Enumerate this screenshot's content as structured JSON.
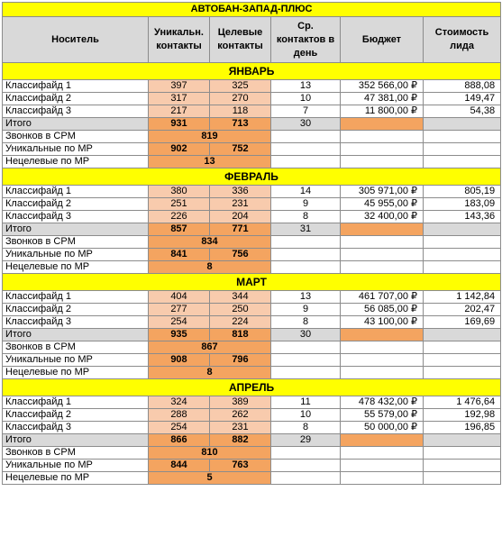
{
  "title": "АВТОБАН-ЗАПАД-ПЛЮС",
  "headers": {
    "carrier": "Носитель",
    "unique": "Уникальн. контакты",
    "target": "Целевые контакты",
    "avg": "Ср. контактов в день",
    "budget": "Бюджет",
    "lead_cost": "Стоимость лида"
  },
  "labels": {
    "total": "Итого",
    "calls_cpm": "Звонков в CPM",
    "unique_mp": "Уникальные по МР",
    "nontarget_mp": "Нецелевые по МР"
  },
  "months": [
    {
      "name": "ЯНВАРЬ",
      "rows": [
        {
          "name": "Классифайд 1",
          "unique": "397",
          "target": "325",
          "avg": "13",
          "budget": "352 566,00 ₽",
          "lead": "888,08"
        },
        {
          "name": "Классифайд 2",
          "unique": "317",
          "target": "270",
          "avg": "10",
          "budget": "47 381,00 ₽",
          "lead": "149,47"
        },
        {
          "name": "Классифайд 3",
          "unique": "217",
          "target": "118",
          "avg": "7",
          "budget": "11 800,00 ₽",
          "lead": "54,38"
        }
      ],
      "total": {
        "unique": "931",
        "target": "713",
        "avg": "30"
      },
      "calls_cpm": "819",
      "unique_mp": {
        "a": "902",
        "b": "752"
      },
      "nontarget_mp": "13"
    },
    {
      "name": "ФЕВРАЛЬ",
      "rows": [
        {
          "name": "Классифайд 1",
          "unique": "380",
          "target": "336",
          "avg": "14",
          "budget": "305 971,00 ₽",
          "lead": "805,19"
        },
        {
          "name": "Классифайд 2",
          "unique": "251",
          "target": "231",
          "avg": "9",
          "budget": "45 955,00 ₽",
          "lead": "183,09"
        },
        {
          "name": "Классифайд 3",
          "unique": "226",
          "target": "204",
          "avg": "8",
          "budget": "32 400,00 ₽",
          "lead": "143,36"
        }
      ],
      "total": {
        "unique": "857",
        "target": "771",
        "avg": "31"
      },
      "calls_cpm": "834",
      "unique_mp": {
        "a": "841",
        "b": "756"
      },
      "nontarget_mp": "8"
    },
    {
      "name": "МАРТ",
      "rows": [
        {
          "name": "Классифайд 1",
          "unique": "404",
          "target": "344",
          "avg": "13",
          "budget": "461 707,00 ₽",
          "lead": "1 142,84"
        },
        {
          "name": "Классифайд 2",
          "unique": "277",
          "target": "250",
          "avg": "9",
          "budget": "56 085,00 ₽",
          "lead": "202,47"
        },
        {
          "name": "Классифайд 3",
          "unique": "254",
          "target": "224",
          "avg": "8",
          "budget": "43 100,00 ₽",
          "lead": "169,69"
        }
      ],
      "total": {
        "unique": "935",
        "target": "818",
        "avg": "30"
      },
      "calls_cpm": "867",
      "unique_mp": {
        "a": "908",
        "b": "796"
      },
      "nontarget_mp": "8"
    },
    {
      "name": "АПРЕЛЬ",
      "rows": [
        {
          "name": "Классифайд 1",
          "unique": "324",
          "target": "389",
          "avg": "11",
          "budget": "478 432,00 ₽",
          "lead": "1 476,64"
        },
        {
          "name": "Классифайд 2",
          "unique": "288",
          "target": "262",
          "avg": "10",
          "budget": "55 579,00 ₽",
          "lead": "192,98"
        },
        {
          "name": "Классифайд 3",
          "unique": "254",
          "target": "231",
          "avg": "8",
          "budget": "50 000,00 ₽",
          "lead": "196,85"
        }
      ],
      "total": {
        "unique": "866",
        "target": "882",
        "avg": "29"
      },
      "calls_cpm": "810",
      "unique_mp": {
        "a": "844",
        "b": "763"
      },
      "nontarget_mp": "5"
    }
  ]
}
